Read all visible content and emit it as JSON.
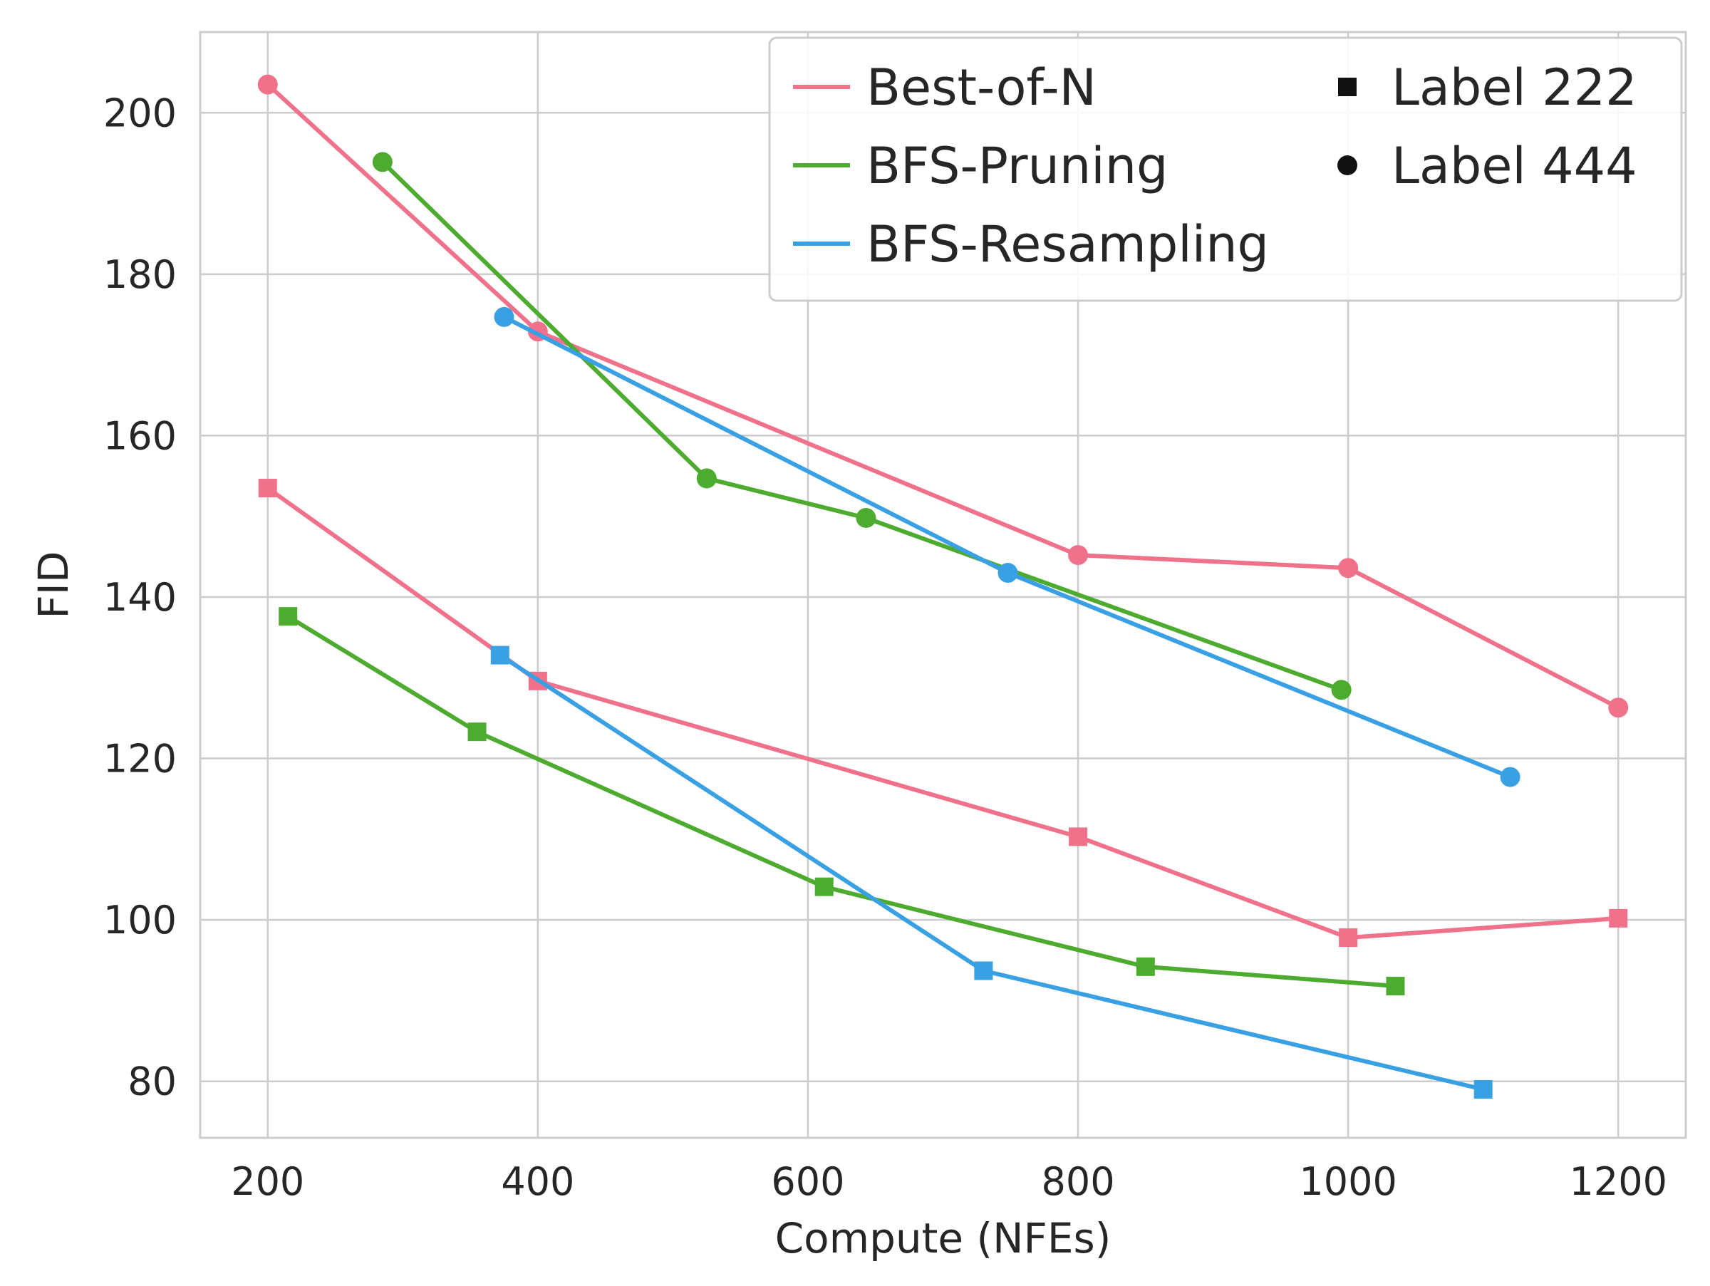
{
  "chart_data": {
    "type": "line",
    "xlabel": "Compute (NFEs)",
    "ylabel": "FID",
    "xlim": [
      150,
      1250
    ],
    "ylim": [
      73,
      210
    ],
    "x_ticks": [
      200,
      400,
      600,
      800,
      1000,
      1200
    ],
    "x_tick_labels": [
      "200",
      "400",
      "600",
      "800",
      "1000",
      "1200"
    ],
    "y_ticks": [
      80,
      100,
      120,
      140,
      160,
      180,
      200
    ],
    "y_tick_labels": [
      "80",
      "100",
      "120",
      "140",
      "160",
      "180",
      "200"
    ],
    "grid": true,
    "legend_position": "top-right",
    "methods": [
      {
        "name": "Best-of-N",
        "color": "#f0718a"
      },
      {
        "name": "BFS-Pruning",
        "color": "#4dab2f"
      },
      {
        "name": "BFS-Resampling",
        "color": "#3aa0e4"
      }
    ],
    "markers": [
      {
        "name": "Label 222",
        "shape": "square"
      },
      {
        "name": "Label 444",
        "shape": "circle"
      }
    ],
    "series": [
      {
        "method": "Best-of-N",
        "label": "Label 222",
        "marker": "square",
        "color": "#f0718a",
        "x": [
          200,
          400,
          800,
          1000,
          1200
        ],
        "y": [
          153.5,
          129.6,
          110.3,
          97.8,
          100.2
        ]
      },
      {
        "method": "BFS-Pruning",
        "label": "Label 222",
        "marker": "square",
        "color": "#4dab2f",
        "x": [
          215,
          355,
          612,
          850,
          1035
        ],
        "y": [
          137.6,
          123.3,
          104.1,
          94.2,
          91.8
        ]
      },
      {
        "method": "BFS-Resampling",
        "label": "Label 222",
        "marker": "square",
        "color": "#3aa0e4",
        "x": [
          372,
          730,
          1100
        ],
        "y": [
          132.8,
          93.7,
          79.0
        ]
      },
      {
        "method": "Best-of-N",
        "label": "Label 444",
        "marker": "circle",
        "color": "#f0718a",
        "x": [
          200,
          400,
          800,
          1000,
          1200
        ],
        "y": [
          203.5,
          172.9,
          145.2,
          143.6,
          126.3
        ]
      },
      {
        "method": "BFS-Pruning",
        "label": "Label 444",
        "marker": "circle",
        "color": "#4dab2f",
        "x": [
          285,
          525,
          643,
          995
        ],
        "y": [
          193.9,
          154.7,
          149.8,
          128.5
        ]
      },
      {
        "method": "BFS-Resampling",
        "label": "Label 444",
        "marker": "circle",
        "color": "#3aa0e4",
        "x": [
          375,
          748,
          1120
        ],
        "y": [
          174.7,
          143.0,
          117.7
        ]
      }
    ]
  }
}
